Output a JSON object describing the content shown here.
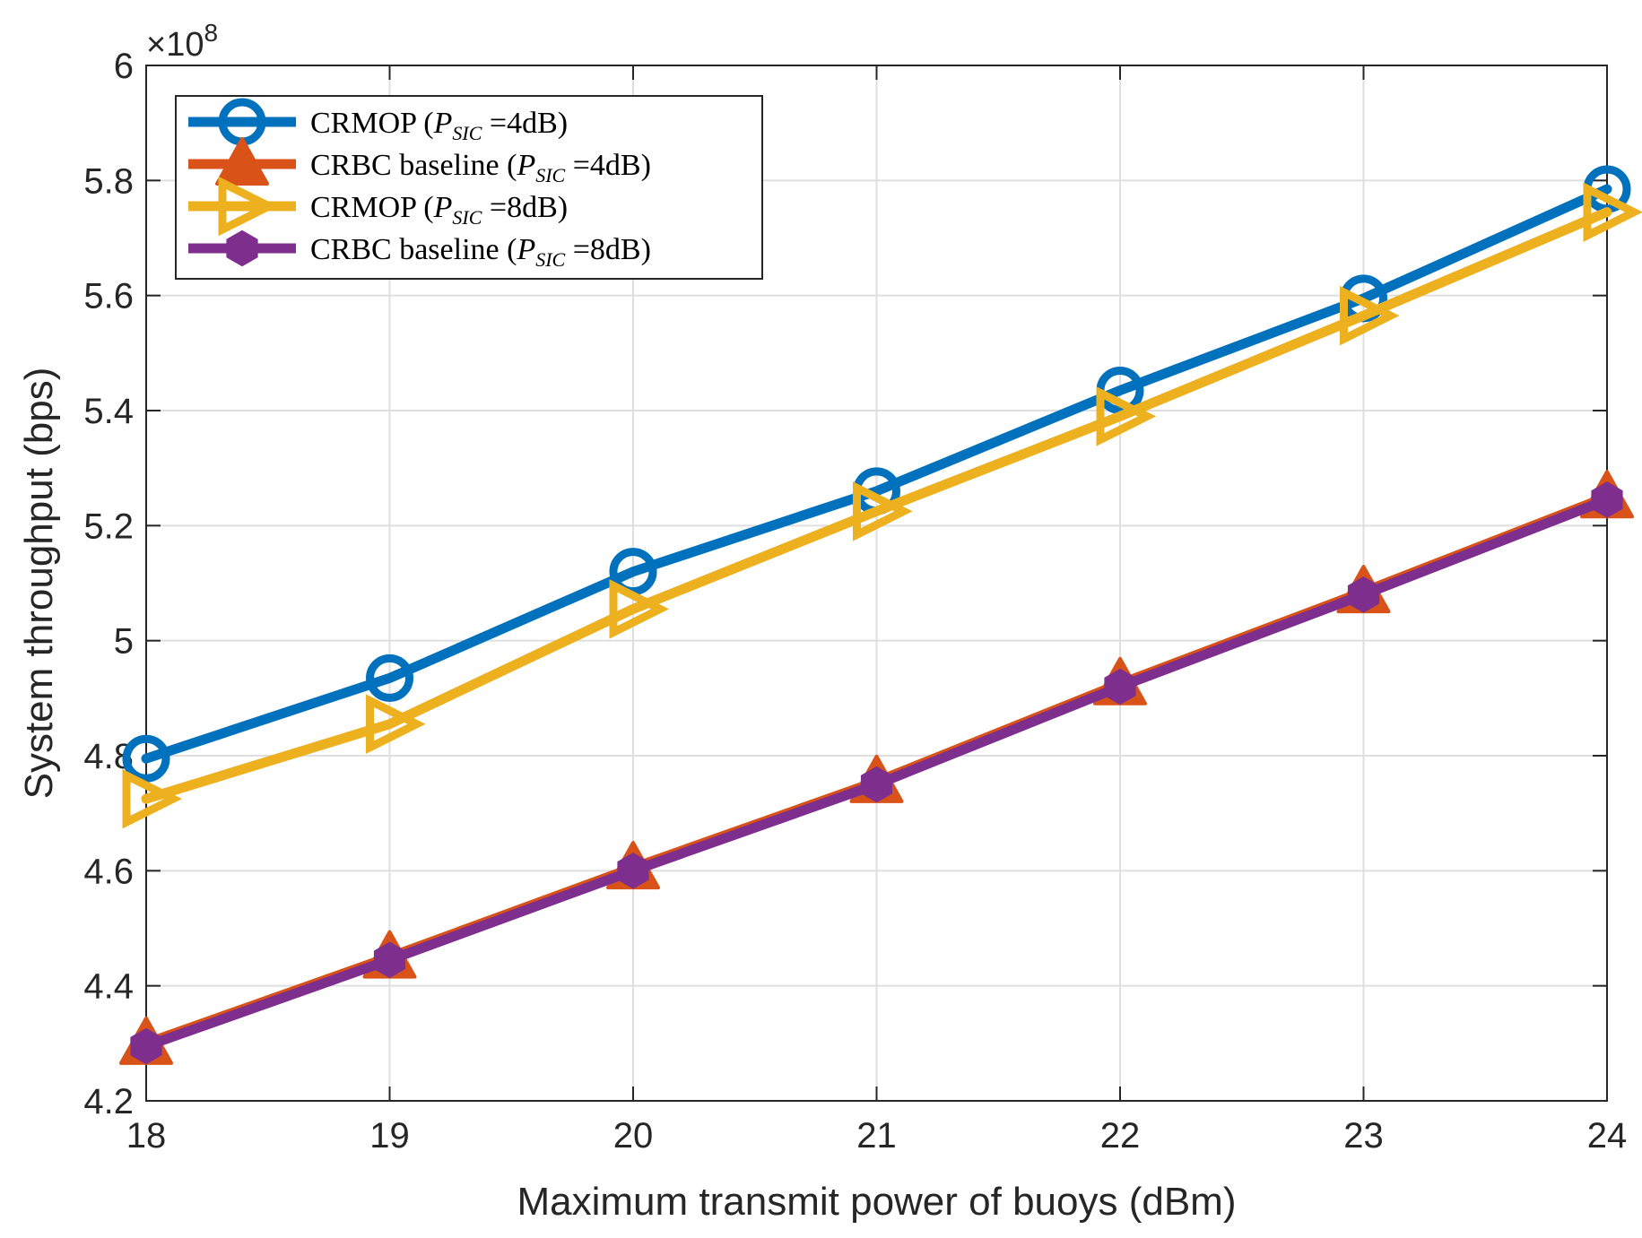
{
  "chart_data": {
    "type": "line",
    "xlabel": "Maximum transmit power of buoys (dBm)",
    "ylabel": "System throughput (bps)",
    "y_exponent": "×10",
    "y_exponent_power": "8",
    "x": [
      18,
      19,
      20,
      21,
      22,
      23,
      24
    ],
    "xlim": [
      18,
      24
    ],
    "ylim": [
      4.2,
      6.0
    ],
    "x_ticks": [
      "18",
      "19",
      "20",
      "21",
      "22",
      "23",
      "24"
    ],
    "y_ticks": [
      "4.2",
      "4.4",
      "4.6",
      "4.8",
      "5",
      "5.2",
      "5.4",
      "5.6",
      "5.8",
      "6"
    ],
    "y_tick_values": [
      4.2,
      4.4,
      4.6,
      4.8,
      5.0,
      5.2,
      5.4,
      5.6,
      5.8,
      6.0
    ],
    "grid": true,
    "legend_position": "top-left",
    "series": [
      {
        "name": "CRMOP (PSIC =4dB)",
        "legend_prefix": "CRMOP (",
        "legend_math": "P",
        "legend_sub": "SIC",
        "legend_suffix": " =4dB)",
        "color": "#0072BD",
        "marker": "circle",
        "values": [
          4.795,
          4.935,
          5.12,
          5.26,
          5.435,
          5.595,
          5.785
        ]
      },
      {
        "name": "CRBC baseline (PSIC =4dB)",
        "legend_prefix": "CRBC baseline (",
        "legend_math": "P",
        "legend_sub": "SIC",
        "legend_suffix": " =4dB)",
        "color": "#D95319",
        "marker": "triangle-up",
        "values": [
          4.3,
          4.45,
          4.605,
          4.755,
          4.925,
          5.085,
          5.25
        ]
      },
      {
        "name": "CRMOP (PSIC =8dB)",
        "legend_prefix": "CRMOP (",
        "legend_math": "P",
        "legend_sub": "SIC",
        "legend_suffix": " =8dB)",
        "color": "#EDB120",
        "marker": "triangle-right",
        "values": [
          4.725,
          4.855,
          5.055,
          5.225,
          5.39,
          5.565,
          5.745
        ]
      },
      {
        "name": "CRBC baseline (PSIC =8dB)",
        "legend_prefix": "CRBC baseline (",
        "legend_math": "P",
        "legend_sub": "SIC",
        "legend_suffix": " =8dB)",
        "color": "#7E2F8E",
        "marker": "hexagon",
        "values": [
          4.295,
          4.445,
          4.6,
          4.75,
          4.92,
          5.08,
          5.245
        ]
      }
    ]
  }
}
